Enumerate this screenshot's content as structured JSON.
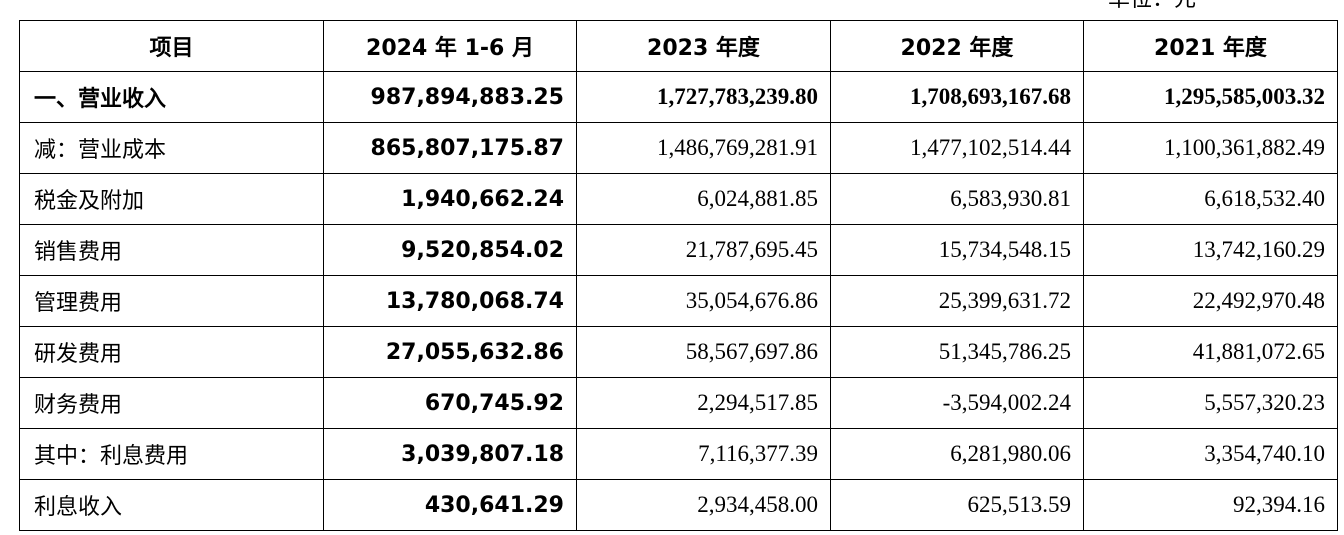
{
  "unit_label": "单位：元",
  "table": {
    "headers": [
      "项目",
      "2024 年 1-6 月",
      "2023 年度",
      "2022 年度",
      "2021 年度"
    ],
    "rows": [
      {
        "label": "一、营业收入",
        "values": [
          "987,894,883.25",
          "1,727,783,239.80",
          "1,708,693,167.68",
          "1,295,585,003.32"
        ],
        "bold": true
      },
      {
        "label": "减：营业成本",
        "values": [
          "865,807,175.87",
          "1,486,769,281.91",
          "1,477,102,514.44",
          "1,100,361,882.49"
        ],
        "bold": false
      },
      {
        "label": "税金及附加",
        "values": [
          "1,940,662.24",
          "6,024,881.85",
          "6,583,930.81",
          "6,618,532.40"
        ],
        "bold": false
      },
      {
        "label": "销售费用",
        "values": [
          "9,520,854.02",
          "21,787,695.45",
          "15,734,548.15",
          "13,742,160.29"
        ],
        "bold": false
      },
      {
        "label": "管理费用",
        "values": [
          "13,780,068.74",
          "35,054,676.86",
          "25,399,631.72",
          "22,492,970.48"
        ],
        "bold": false
      },
      {
        "label": "研发费用",
        "values": [
          "27,055,632.86",
          "58,567,697.86",
          "51,345,786.25",
          "41,881,072.65"
        ],
        "bold": false
      },
      {
        "label": "财务费用",
        "values": [
          "670,745.92",
          "2,294,517.85",
          "-3,594,002.24",
          "5,557,320.23"
        ],
        "bold": false
      },
      {
        "label": "其中：利息费用",
        "values": [
          "3,039,807.18",
          "7,116,377.39",
          "6,281,980.06",
          "3,354,740.10"
        ],
        "bold": false
      },
      {
        "label": "利息收入",
        "values": [
          "430,641.29",
          "2,934,458.00",
          "625,513.59",
          "92,394.16"
        ],
        "bold": false
      }
    ]
  }
}
